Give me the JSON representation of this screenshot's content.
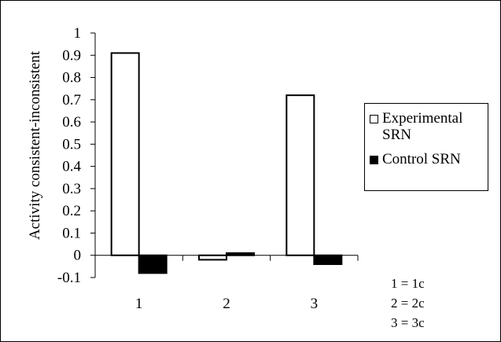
{
  "chart_data": {
    "type": "bar",
    "categories": [
      "1",
      "2",
      "3"
    ],
    "series": [
      {
        "name": "Experimental SRN",
        "values": [
          0.91,
          -0.02,
          0.72
        ],
        "fill": "#ffffff"
      },
      {
        "name": "Control SRN",
        "values": [
          -0.08,
          0.01,
          -0.04
        ],
        "fill": "#000000"
      }
    ],
    "title": "",
    "xlabel": "",
    "ylabel": "Activity consistent-inconsistent",
    "ylim": [
      -0.1,
      1.0
    ],
    "yticks": [
      "1",
      "0.9",
      "0.8",
      "0.7",
      "0.6",
      "0.5",
      "0.4",
      "0.3",
      "0.2",
      "0.1",
      "0",
      "-0.1"
    ],
    "grid": false,
    "legend_position": "right"
  },
  "legend": {
    "items": [
      {
        "label": "Experimental SRN"
      },
      {
        "label": "Control SRN"
      }
    ]
  },
  "notes": [
    "1 = 1c",
    "2 = 2c",
    "3 = 3c"
  ],
  "colors": {
    "axis": "#000000",
    "open_bar": "#ffffff",
    "filled_bar": "#000000"
  }
}
